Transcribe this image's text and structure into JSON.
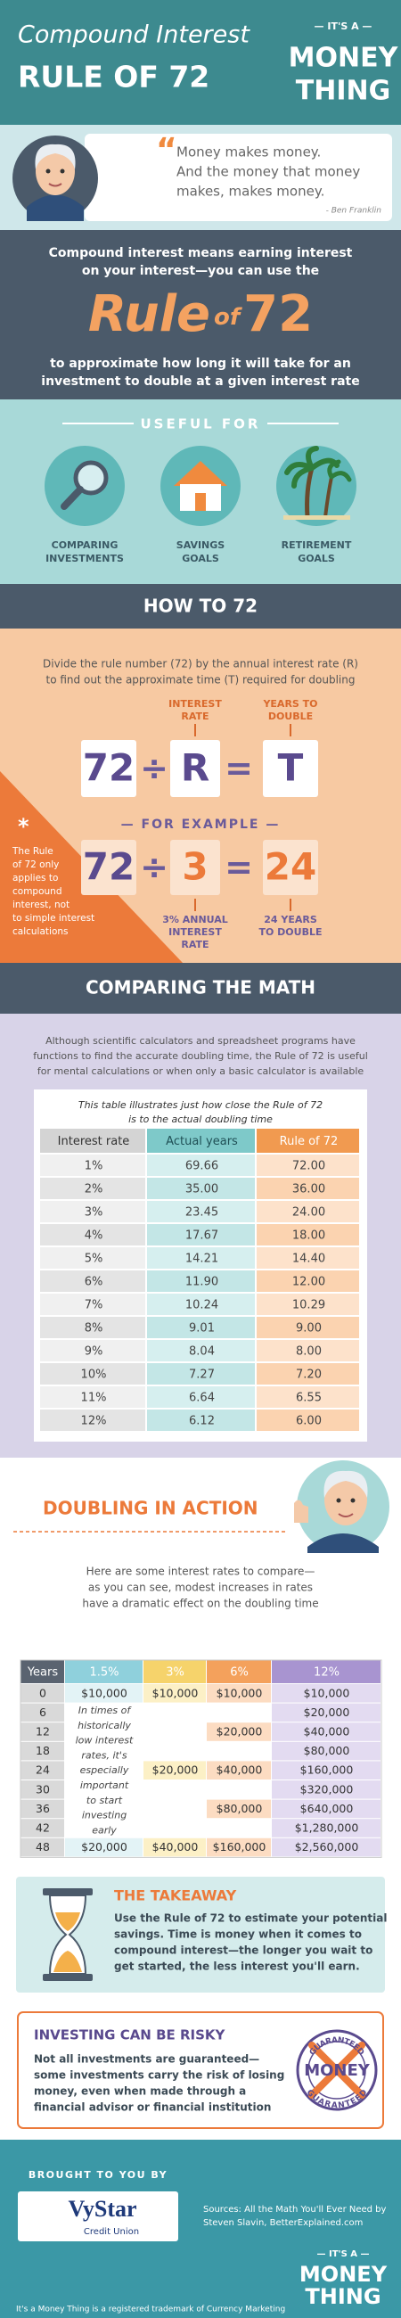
{
  "header": {
    "title_line1": "Compound Interest",
    "title_line2": "RULE OF 72",
    "brand_top": "— IT'S A —",
    "brand_line1": "MONEY",
    "brand_line2": "THING"
  },
  "quote": {
    "lines": [
      "Money makes money.",
      "And the money that money",
      "makes, makes money."
    ],
    "author": "- Ben Franklin"
  },
  "intro": {
    "lines_before": [
      "Compound interest means earning interest",
      "on your interest—you can use the"
    ],
    "rule": "Rule",
    "of": "of",
    "number": "72",
    "lines_after": [
      "to approximate how long it will take for an",
      "investment to double at a given interest rate"
    ]
  },
  "useful_for": {
    "heading": "USEFUL FOR",
    "items": [
      [
        "COMPARING",
        "INVESTMENTS"
      ],
      [
        "SAVINGS",
        "GOALS"
      ],
      [
        "RETIREMENT",
        "GOALS"
      ]
    ]
  },
  "how_to": {
    "heading": "HOW TO 72",
    "description": [
      "Divide the rule number (72) by the annual interest rate (R)",
      "to find out the approximate time (T) required for doubling"
    ],
    "rate_label": [
      "INTEREST",
      "RATE"
    ],
    "double_label": [
      "YEARS TO",
      "DOUBLE"
    ],
    "formula": [
      "72",
      "÷",
      "R",
      "=",
      "T"
    ],
    "example_heading": "— FOR EXAMPLE —",
    "example": [
      "72",
      "÷",
      "3",
      "=",
      "24"
    ],
    "example_rate_label": [
      "3% ANNUAL",
      "INTEREST",
      "RATE"
    ],
    "example_double_label": [
      "24 YEARS",
      "TO DOUBLE"
    ],
    "note_mark": "*",
    "note": [
      "The Rule",
      "of 72 only",
      "applies to",
      "compound",
      "interest, not",
      "to simple interest",
      "calculations"
    ]
  },
  "comparing": {
    "heading": "COMPARING THE MATH",
    "description": [
      "Although scientific calculators and spreadsheet programs have",
      "functions to find the accurate doubling time, the Rule of 72 is useful",
      "for mental calculations or when only a basic calculator is available"
    ],
    "caption": [
      "This table illustrates just how close the Rule of 72",
      "is to the actual doubling time"
    ],
    "table": {
      "header": [
        "Interest rate",
        "Actual years",
        "Rule of 72"
      ],
      "rows": [
        [
          "1%",
          "69.66",
          "72.00"
        ],
        [
          "2%",
          "35.00",
          "36.00"
        ],
        [
          "3%",
          "23.45",
          "24.00"
        ],
        [
          "4%",
          "17.67",
          "18.00"
        ],
        [
          "5%",
          "14.21",
          "14.40"
        ],
        [
          "6%",
          "11.90",
          "12.00"
        ],
        [
          "7%",
          "10.24",
          "10.29"
        ],
        [
          "8%",
          "9.01",
          "9.00"
        ],
        [
          "9%",
          "8.04",
          "8.00"
        ],
        [
          "10%",
          "7.27",
          "7.20"
        ],
        [
          "11%",
          "6.64",
          "6.55"
        ],
        [
          "12%",
          "6.12",
          "6.00"
        ]
      ]
    }
  },
  "doubling": {
    "heading": "DOUBLING IN ACTION",
    "description": [
      "Here are some interest rates to compare—",
      "as you can see, modest increases in rates",
      "have a dramatic effect on the doubling time"
    ],
    "table": {
      "header": [
        "Years",
        "1.5%",
        "3%",
        "6%",
        "12%"
      ],
      "rows": [
        [
          "0",
          "$10,000",
          "$10,000",
          "$10,000",
          "$10,000"
        ],
        [
          "6",
          null,
          null,
          null,
          "$20,000"
        ],
        [
          "12",
          null,
          null,
          "$20,000",
          "$40,000"
        ],
        [
          "18",
          null,
          null,
          null,
          "$80,000"
        ],
        [
          "24",
          null,
          "$20,000",
          "$40,000",
          "$160,000"
        ],
        [
          "30",
          null,
          null,
          null,
          "$320,000"
        ],
        [
          "36",
          null,
          null,
          "$80,000",
          "$640,000"
        ],
        [
          "42",
          null,
          null,
          null,
          "$1,280,000"
        ],
        [
          "48",
          "$20,000",
          "$40,000",
          "$160,000",
          "$2,560,000"
        ]
      ],
      "note": [
        "In times of",
        "historically",
        "low interest",
        "rates, it's",
        "especially",
        "important",
        "to start",
        "investing",
        "early"
      ]
    }
  },
  "takeaway": {
    "heading": "THE TAKEAWAY",
    "lines": [
      "Use the Rule of 72 to estimate your potential",
      "savings. Time is money when it comes to",
      "compound interest—the longer you wait to",
      "get started, the less interest you'll earn."
    ]
  },
  "risk": {
    "heading": "INVESTING CAN BE RISKY",
    "lines": [
      "Not all investments are guaranteed—",
      "some investments carry the risk of losing",
      "money, even when made through a",
      "financial advisor or financial institution"
    ],
    "stamp_ring": "GUARANTEED",
    "stamp_center": "MONEY"
  },
  "footer": {
    "brought": "BROUGHT TO YOU BY",
    "logo": "VyStar",
    "logo_sub": "Credit Union",
    "sources": [
      "Sources: All the Math You'll Ever Need by",
      "Steven Slavin, BetterExplained.com"
    ],
    "brand_top": "— IT'S A —",
    "brand_line1": "MONEY",
    "brand_line2": "THING",
    "trademark": "It's a Money Thing is a registered trademark of Currency Marketing"
  }
}
